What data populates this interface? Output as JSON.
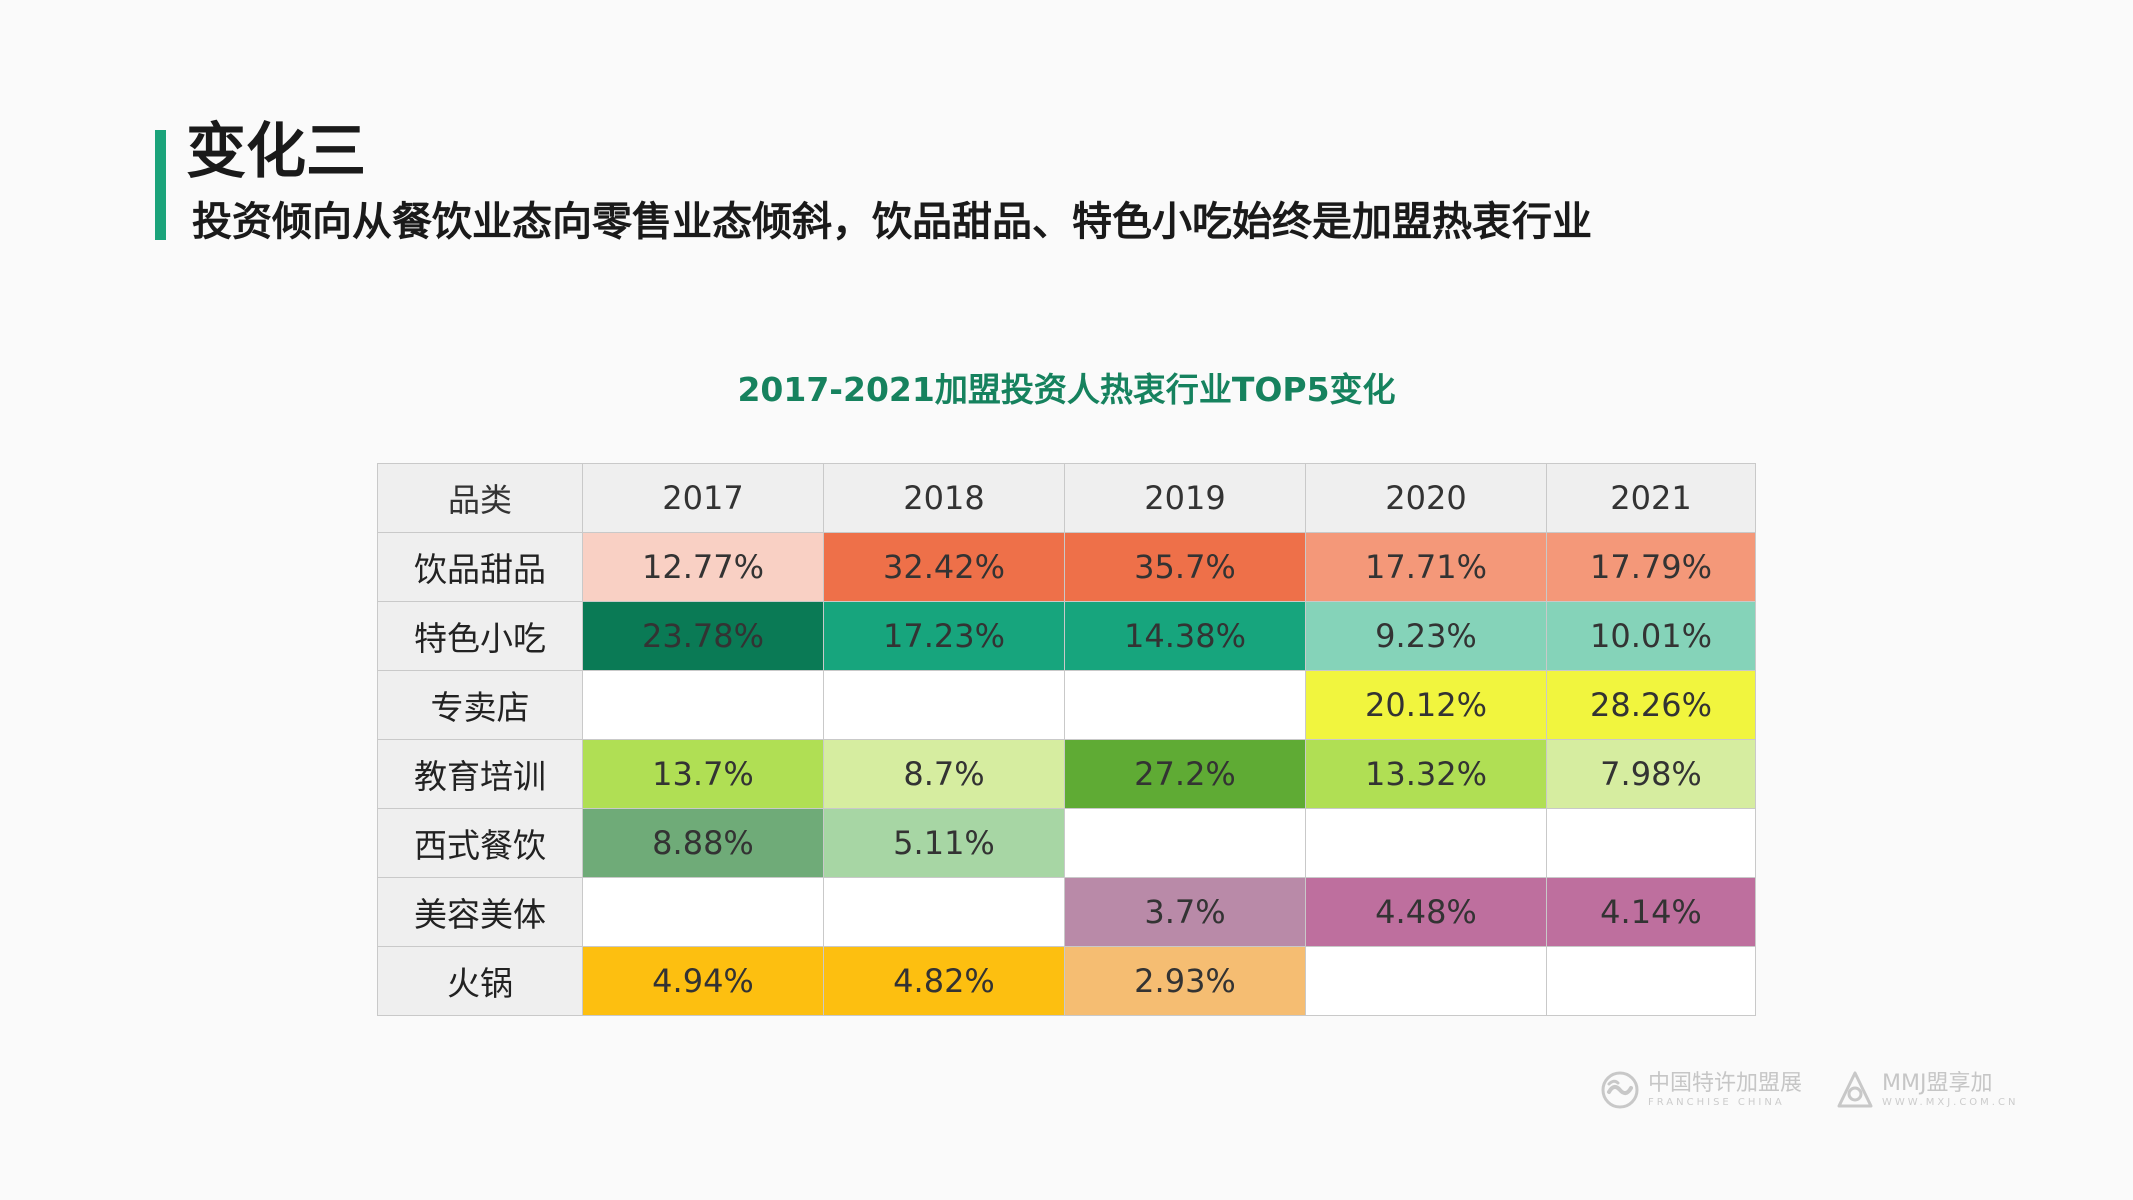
{
  "header": {
    "title": "变化三",
    "subtitle": "投资倾向从餐饮业态向零售业态倾斜，饮品甜品、特色小吃始终是加盟热衷行业"
  },
  "table": {
    "title": "2017-2021加盟投资人热衷行业TOP5变化",
    "headers": [
      "品类",
      "2017",
      "2018",
      "2019",
      "2020",
      "2021"
    ],
    "rows": [
      {
        "category": "饮品甜品",
        "cells": [
          {
            "value": "12.77%",
            "color": "#f9d0c4"
          },
          {
            "value": "32.42%",
            "color": "#ee7049"
          },
          {
            "value": "35.7%",
            "color": "#ee7049"
          },
          {
            "value": "17.71%",
            "color": "#f49879"
          },
          {
            "value": "17.79%",
            "color": "#f49879"
          }
        ]
      },
      {
        "category": "特色小吃",
        "cells": [
          {
            "value": "23.78%",
            "color": "#0a7a55"
          },
          {
            "value": "17.23%",
            "color": "#17a57d"
          },
          {
            "value": "14.38%",
            "color": "#17a57d"
          },
          {
            "value": "9.23%",
            "color": "#85d3b9"
          },
          {
            "value": "10.01%",
            "color": "#85d3b9"
          }
        ]
      },
      {
        "category": "专卖店",
        "cells": [
          {
            "value": "",
            "color": ""
          },
          {
            "value": "",
            "color": ""
          },
          {
            "value": "",
            "color": ""
          },
          {
            "value": "20.12%",
            "color": "#f1f53e"
          },
          {
            "value": "28.26%",
            "color": "#f1f53e"
          }
        ]
      },
      {
        "category": "教育培训",
        "cells": [
          {
            "value": "13.7%",
            "color": "#b0df54"
          },
          {
            "value": "8.7%",
            "color": "#d6eda0"
          },
          {
            "value": "27.2%",
            "color": "#5fab34"
          },
          {
            "value": "13.32%",
            "color": "#b0df54"
          },
          {
            "value": "7.98%",
            "color": "#d6eda0"
          }
        ]
      },
      {
        "category": "西式餐饮",
        "cells": [
          {
            "value": "8.88%",
            "color": "#6fab78"
          },
          {
            "value": "5.11%",
            "color": "#a7d6a4"
          },
          {
            "value": "",
            "color": ""
          },
          {
            "value": "",
            "color": ""
          },
          {
            "value": "",
            "color": ""
          }
        ]
      },
      {
        "category": "美容美体",
        "cells": [
          {
            "value": "",
            "color": ""
          },
          {
            "value": "",
            "color": ""
          },
          {
            "value": "3.7%",
            "color": "#b98aa8"
          },
          {
            "value": "4.48%",
            "color": "#be6f9e"
          },
          {
            "value": "4.14%",
            "color": "#be6f9e"
          }
        ]
      },
      {
        "category": "火锅",
        "cells": [
          {
            "value": "4.94%",
            "color": "#fdbf10"
          },
          {
            "value": "4.82%",
            "color": "#fdbf10"
          },
          {
            "value": "2.93%",
            "color": "#f5bd72"
          },
          {
            "value": "",
            "color": ""
          },
          {
            "value": "",
            "color": ""
          }
        ]
      }
    ]
  },
  "footer": {
    "logo1_main": "中国特许加盟展",
    "logo1_sub": "FRANCHISE CHINA",
    "logo2_main": "MMJ盟享加",
    "logo2_sub": "WWW.MXJ.COM.CN"
  }
}
